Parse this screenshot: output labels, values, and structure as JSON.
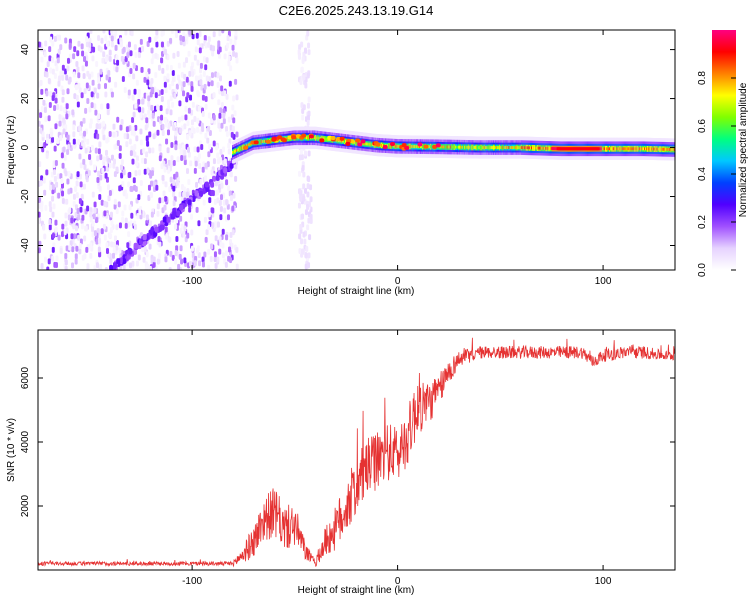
{
  "title": "C2E6.2025.243.13.19.G14",
  "colors": {
    "snr_line": "#e53232",
    "colormap_stops": [
      "#ffffff",
      "#e6d2ff",
      "#a050ff",
      "#5000ff",
      "#0040ff",
      "#00c8ff",
      "#00ff80",
      "#80ff00",
      "#ffff00",
      "#ff8000",
      "#ff0000",
      "#ff0080"
    ]
  },
  "chart_data": [
    {
      "type": "heatmap",
      "title": "C2E6.2025.243.13.19.G14",
      "xlabel": "Height of straight line (km)",
      "ylabel": "Frequency (Hz)",
      "xlim": [
        -175,
        135
      ],
      "ylim": [
        -50,
        48
      ],
      "xticks": [
        -100,
        0,
        100
      ],
      "yticks": [
        -40,
        -20,
        0,
        20,
        40
      ],
      "colorbar": {
        "label": "Normalized spectral amplitude",
        "range": [
          0.0,
          1.0
        ],
        "ticks": [
          0.0,
          0.2,
          0.4,
          0.6,
          0.8
        ]
      },
      "features": {
        "noise_region_x": [
          -175,
          -78
        ],
        "noise_column_x": [
          -48,
          -42
        ],
        "diagonal_trace": {
          "from": [
            -140,
            -50
          ],
          "to": [
            -78,
            -5
          ]
        },
        "main_band": [
          [
            -80,
            -2
          ],
          [
            -70,
            2
          ],
          [
            -60,
            3
          ],
          [
            -50,
            4
          ],
          [
            -40,
            4
          ],
          [
            -30,
            3
          ],
          [
            -20,
            2
          ],
          [
            -10,
            1
          ],
          [
            0,
            0.5
          ],
          [
            20,
            0.3
          ],
          [
            40,
            0
          ],
          [
            60,
            0
          ],
          [
            80,
            -0.5
          ],
          [
            100,
            -0.5
          ],
          [
            120,
            -0.5
          ],
          [
            135,
            -0.8
          ]
        ]
      }
    },
    {
      "type": "line",
      "xlabel": "Height of straight line (km)",
      "ylabel": "SNR (10 * v/v)",
      "xlim": [
        -175,
        135
      ],
      "ylim": [
        0,
        7500
      ],
      "xticks": [
        -100,
        0,
        100
      ],
      "yticks": [
        2000,
        4000,
        6000
      ],
      "series": [
        {
          "name": "SNR",
          "x": [
            -175,
            -150,
            -120,
            -100,
            -85,
            -80,
            -75,
            -70,
            -65,
            -60,
            -55,
            -50,
            -45,
            -40,
            -35,
            -30,
            -25,
            -20,
            -15,
            -10,
            -5,
            0,
            5,
            10,
            15,
            20,
            25,
            30,
            40,
            50,
            60,
            70,
            80,
            90,
            95,
            100,
            110,
            120,
            130,
            135
          ],
          "y": [
            200,
            200,
            200,
            200,
            200,
            200,
            500,
            900,
            1600,
            1800,
            1300,
            1400,
            600,
            200,
            900,
            1300,
            2000,
            2600,
            3200,
            3400,
            3700,
            3600,
            4200,
            5200,
            5200,
            5600,
            6200,
            6600,
            6800,
            6800,
            6800,
            6800,
            6800,
            6800,
            6500,
            6700,
            6800,
            6800,
            6700,
            6700
          ],
          "noise_amplitude": [
            60,
            60,
            60,
            60,
            60,
            80,
            300,
            500,
            700,
            800,
            700,
            700,
            300,
            100,
            500,
            700,
            900,
            900,
            900,
            900,
            900,
            900,
            900,
            1000,
            700,
            500,
            400,
            250,
            200,
            200,
            200,
            200,
            200,
            200,
            200,
            200,
            200,
            200,
            150,
            150
          ]
        }
      ]
    }
  ]
}
